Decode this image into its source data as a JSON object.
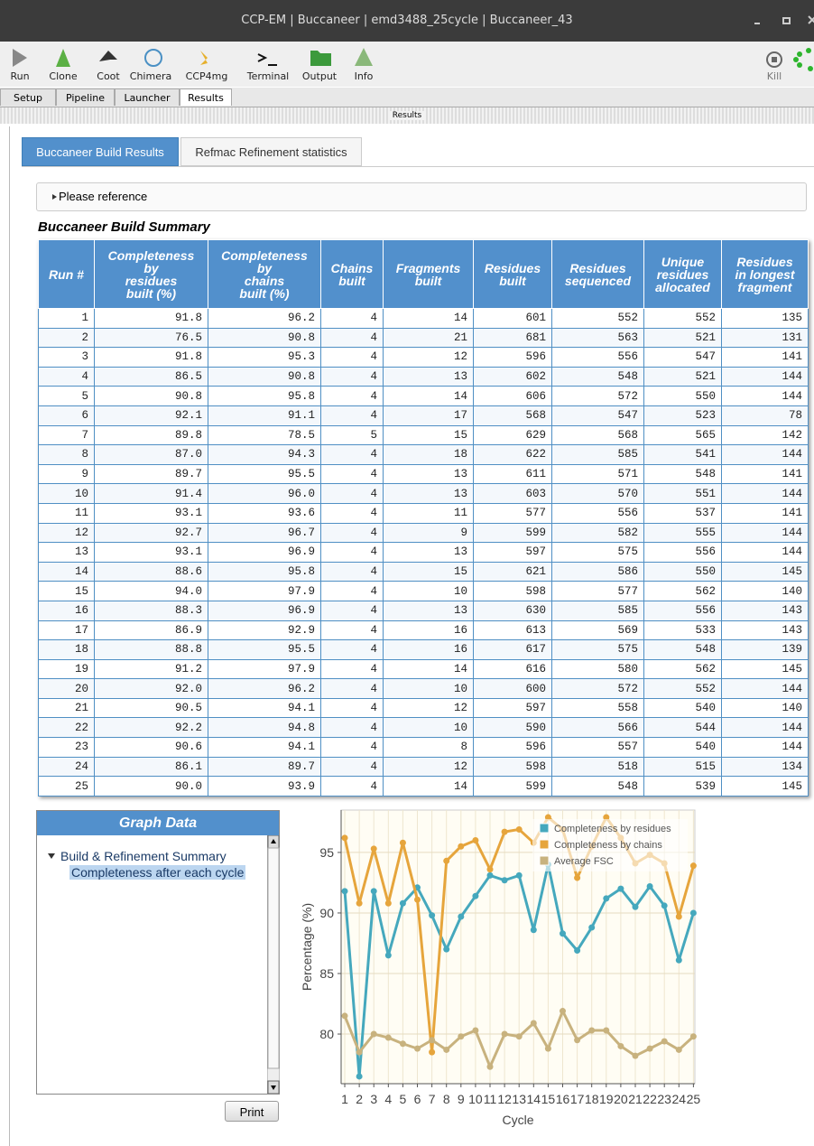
{
  "window": {
    "title": "CCP-EM | Buccaneer | emd3488_25cycle | Buccaneer_43"
  },
  "toolbar": {
    "buttons": [
      "Run",
      "Clone",
      "Coot",
      "Chimera",
      "CCP4mg",
      "Terminal",
      "Output",
      "Info"
    ],
    "kill": "Kill"
  },
  "tabs": [
    "Setup",
    "Pipeline",
    "Launcher",
    "Results"
  ],
  "results_bar": "Results",
  "subtabs": [
    "Buccaneer Build Results",
    "Refmac Refinement statistics"
  ],
  "reference": "Please reference",
  "table": {
    "title": "Buccaneer Build Summary",
    "headers": [
      [
        "Run #"
      ],
      [
        "Completeness",
        "by",
        "residues",
        "built (%)"
      ],
      [
        "Completeness",
        "by",
        "chains",
        "built (%)"
      ],
      [
        "Chains",
        "built"
      ],
      [
        "Fragments",
        "built"
      ],
      [
        "Residues",
        "built"
      ],
      [
        "Residues",
        "sequenced"
      ],
      [
        "Unique",
        "residues",
        "allocated"
      ],
      [
        "Residues",
        "in longest",
        "fragment"
      ]
    ],
    "rows": [
      [
        "1",
        "91.8",
        "96.2",
        "4",
        "14",
        "601",
        "552",
        "552",
        "135"
      ],
      [
        "2",
        "76.5",
        "90.8",
        "4",
        "21",
        "681",
        "563",
        "521",
        "131"
      ],
      [
        "3",
        "91.8",
        "95.3",
        "4",
        "12",
        "596",
        "556",
        "547",
        "141"
      ],
      [
        "4",
        "86.5",
        "90.8",
        "4",
        "13",
        "602",
        "548",
        "521",
        "144"
      ],
      [
        "5",
        "90.8",
        "95.8",
        "4",
        "14",
        "606",
        "572",
        "550",
        "144"
      ],
      [
        "6",
        "92.1",
        "91.1",
        "4",
        "17",
        "568",
        "547",
        "523",
        "78"
      ],
      [
        "7",
        "89.8",
        "78.5",
        "5",
        "15",
        "629",
        "568",
        "565",
        "142"
      ],
      [
        "8",
        "87.0",
        "94.3",
        "4",
        "18",
        "622",
        "585",
        "541",
        "144"
      ],
      [
        "9",
        "89.7",
        "95.5",
        "4",
        "13",
        "611",
        "571",
        "548",
        "141"
      ],
      [
        "10",
        "91.4",
        "96.0",
        "4",
        "13",
        "603",
        "570",
        "551",
        "144"
      ],
      [
        "11",
        "93.1",
        "93.6",
        "4",
        "11",
        "577",
        "556",
        "537",
        "141"
      ],
      [
        "12",
        "92.7",
        "96.7",
        "4",
        "9",
        "599",
        "582",
        "555",
        "144"
      ],
      [
        "13",
        "93.1",
        "96.9",
        "4",
        "13",
        "597",
        "575",
        "556",
        "144"
      ],
      [
        "14",
        "88.6",
        "95.8",
        "4",
        "15",
        "621",
        "586",
        "550",
        "145"
      ],
      [
        "15",
        "94.0",
        "97.9",
        "4",
        "10",
        "598",
        "577",
        "562",
        "140"
      ],
      [
        "16",
        "88.3",
        "96.9",
        "4",
        "13",
        "630",
        "585",
        "556",
        "143"
      ],
      [
        "17",
        "86.9",
        "92.9",
        "4",
        "16",
        "613",
        "569",
        "533",
        "143"
      ],
      [
        "18",
        "88.8",
        "95.5",
        "4",
        "16",
        "617",
        "575",
        "548",
        "139"
      ],
      [
        "19",
        "91.2",
        "97.9",
        "4",
        "14",
        "616",
        "580",
        "562",
        "145"
      ],
      [
        "20",
        "92.0",
        "96.2",
        "4",
        "10",
        "600",
        "572",
        "552",
        "144"
      ],
      [
        "21",
        "90.5",
        "94.1",
        "4",
        "12",
        "597",
        "558",
        "540",
        "140"
      ],
      [
        "22",
        "92.2",
        "94.8",
        "4",
        "10",
        "590",
        "566",
        "544",
        "144"
      ],
      [
        "23",
        "90.6",
        "94.1",
        "4",
        "8",
        "596",
        "557",
        "540",
        "144"
      ],
      [
        "24",
        "86.1",
        "89.7",
        "4",
        "12",
        "598",
        "518",
        "515",
        "134"
      ],
      [
        "25",
        "90.0",
        "93.9",
        "4",
        "14",
        "599",
        "548",
        "539",
        "145"
      ]
    ]
  },
  "graph_panel": {
    "title": "Graph Data",
    "tree_parent": "Build & Refinement Summary",
    "tree_child": "Completeness after each cycle",
    "print": "Print"
  },
  "chart_data": {
    "type": "line",
    "xlabel": "Cycle",
    "ylabel": "Percentage (%)",
    "x": [
      1,
      2,
      3,
      4,
      5,
      6,
      7,
      8,
      9,
      10,
      11,
      12,
      13,
      14,
      15,
      16,
      17,
      18,
      19,
      20,
      21,
      22,
      23,
      24,
      25
    ],
    "xlim": [
      0.75,
      25.1
    ],
    "xticks": [
      1,
      2,
      3,
      4,
      5,
      6,
      7,
      8,
      9,
      10,
      11,
      12,
      13,
      14,
      15,
      16,
      17,
      18,
      19,
      20,
      21,
      22,
      23,
      24,
      25
    ],
    "ylim": [
      75.9,
      98.5
    ],
    "yticks": [
      80,
      85,
      90,
      95
    ],
    "grid": true,
    "legend": "upper right",
    "series": [
      {
        "name": "Completeness by residues",
        "color": "#45a8bd",
        "values": [
          91.8,
          76.5,
          91.8,
          86.5,
          90.8,
          92.1,
          89.8,
          87.0,
          89.7,
          91.4,
          93.1,
          92.7,
          93.1,
          88.6,
          94.0,
          88.3,
          86.9,
          88.8,
          91.2,
          92.0,
          90.5,
          92.2,
          90.6,
          86.1,
          90.0
        ]
      },
      {
        "name": "Completeness by chains",
        "color": "#e6a53c",
        "values": [
          96.2,
          90.8,
          95.3,
          90.8,
          95.8,
          91.1,
          78.5,
          94.3,
          95.5,
          96.0,
          93.6,
          96.7,
          96.9,
          95.8,
          97.9,
          96.9,
          92.9,
          95.5,
          97.9,
          96.2,
          94.1,
          94.8,
          94.1,
          89.7,
          93.9
        ]
      },
      {
        "name": "Average FSC",
        "color": "#c8b27e",
        "values": [
          81.5,
          78.5,
          80.0,
          79.7,
          79.2,
          78.8,
          79.5,
          78.7,
          79.8,
          80.3,
          77.3,
          80.0,
          79.8,
          80.9,
          78.8,
          81.9,
          79.5,
          80.3,
          80.3,
          79.0,
          78.2,
          78.8,
          79.4,
          78.7,
          79.8
        ]
      }
    ]
  }
}
